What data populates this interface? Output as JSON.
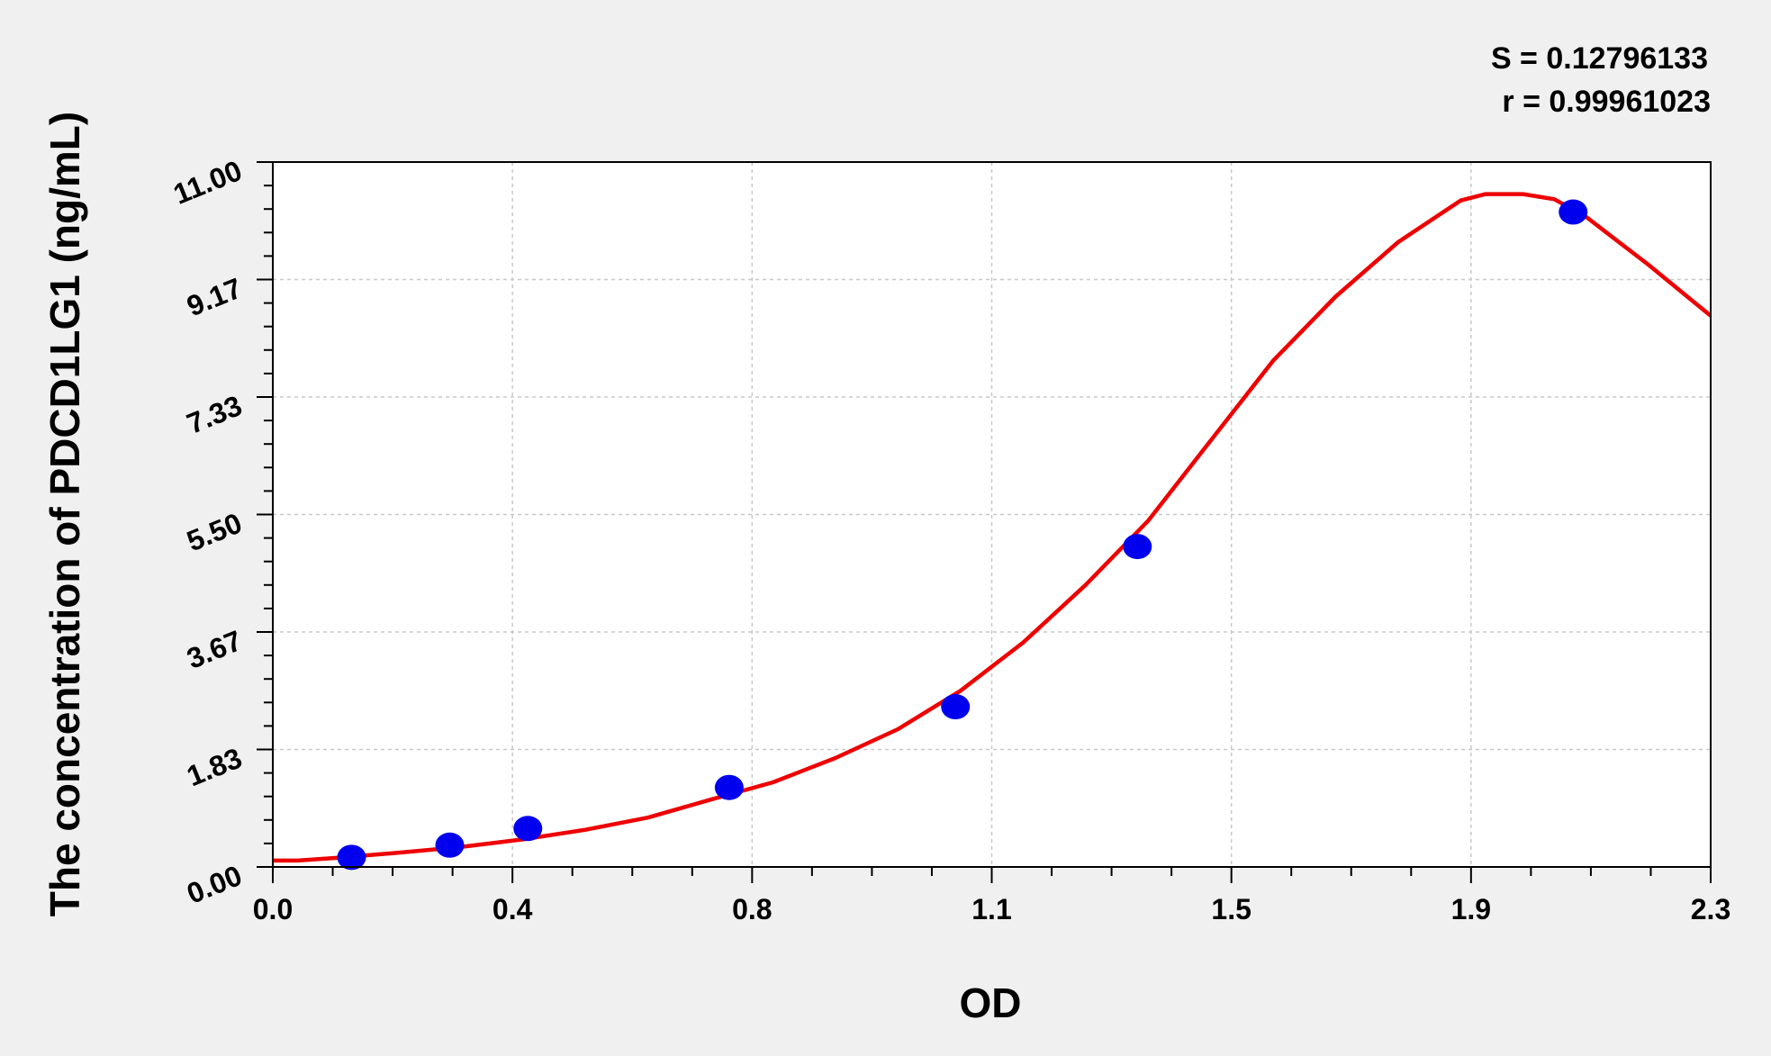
{
  "chart_data": {
    "type": "scatter",
    "title": "",
    "xlabel": "OD",
    "ylabel": "The concentration of PDCD1LG1 (ng/mL)",
    "x_ticks": [
      "0.0",
      "0.4",
      "0.8",
      "1.1",
      "1.5",
      "1.9",
      "2.3"
    ],
    "y_ticks": [
      "0.00",
      "1.83",
      "3.67",
      "5.50",
      "7.33",
      "9.17",
      "11.00"
    ],
    "xlim": [
      0,
      2.3
    ],
    "ylim": [
      0,
      11
    ],
    "grid": true,
    "stats": [
      "S = 0.12796133",
      "r = 0.99961023"
    ],
    "series": [
      {
        "type": "scatter",
        "color": "#0000ee",
        "points": [
          [
            0.126,
            0.15
          ],
          [
            0.283,
            0.34
          ],
          [
            0.408,
            0.6
          ],
          [
            0.73,
            1.24
          ],
          [
            1.092,
            2.5
          ],
          [
            1.383,
            5.0
          ],
          [
            2.08,
            10.22
          ]
        ]
      },
      {
        "type": "line",
        "color": "#ee0000",
        "points": [
          [
            0.0,
            0.1
          ],
          [
            0.04,
            0.1
          ],
          [
            0.1,
            0.14
          ],
          [
            0.2,
            0.22
          ],
          [
            0.3,
            0.31
          ],
          [
            0.4,
            0.43
          ],
          [
            0.5,
            0.58
          ],
          [
            0.6,
            0.77
          ],
          [
            0.7,
            1.05
          ],
          [
            0.8,
            1.32
          ],
          [
            0.9,
            1.7
          ],
          [
            1.0,
            2.15
          ],
          [
            1.1,
            2.75
          ],
          [
            1.2,
            3.5
          ],
          [
            1.3,
            4.4
          ],
          [
            1.4,
            5.4
          ],
          [
            1.5,
            6.65
          ],
          [
            1.6,
            7.9
          ],
          [
            1.7,
            8.9
          ],
          [
            1.8,
            9.75
          ],
          [
            1.9,
            10.4
          ],
          [
            1.94,
            10.5
          ],
          [
            2.0,
            10.5
          ],
          [
            2.05,
            10.42
          ],
          [
            2.1,
            10.15
          ],
          [
            2.2,
            9.4
          ],
          [
            2.3,
            8.6
          ]
        ]
      }
    ]
  }
}
